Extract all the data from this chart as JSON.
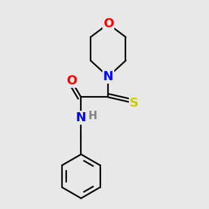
{
  "background_color": "#e8e8e8",
  "atom_colors": {
    "C": "#000000",
    "N": "#0000ff",
    "O": "#ff0000",
    "S": "#cccc00",
    "H": "#808080"
  },
  "bond_width": 1.6,
  "figsize": [
    3.0,
    3.0
  ],
  "dpi": 100
}
